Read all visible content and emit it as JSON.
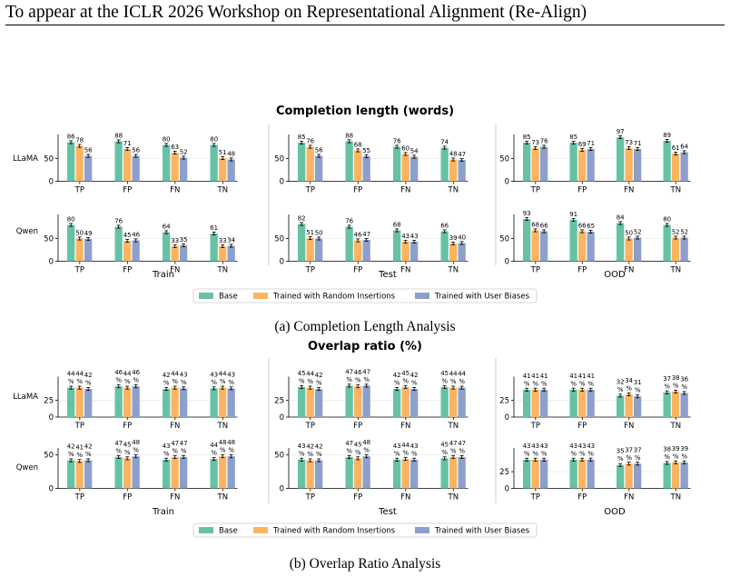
{
  "header": {
    "text": "To appear at the ICLR 2026 Workshop on Representational Alignment (Re-Align)"
  },
  "legend": {
    "items": [
      {
        "label": "Base",
        "color": "#66c2a5"
      },
      {
        "label": "Trained with Random Insertions",
        "color": "#fdb462"
      },
      {
        "label": "Trained with User Biases",
        "color": "#8da0cb"
      }
    ]
  },
  "chart_data": [
    {
      "type": "bar",
      "title": "Completion length (words)",
      "caption": "(a) Completion Length Analysis",
      "columns": [
        "Train",
        "Test",
        "OOD"
      ],
      "rows": [
        "LLaMA",
        "Qwen"
      ],
      "categories": [
        "TP",
        "FP",
        "FN",
        "TN"
      ],
      "series": [
        "Base",
        "Trained with Random Insertions",
        "Trained with User Biases"
      ],
      "panels": [
        {
          "row": "LLaMA",
          "column": "Train",
          "values": [
            [
              86,
              78,
              56
            ],
            [
              88,
              71,
              56
            ],
            [
              80,
              63,
              52
            ],
            [
              80,
              51,
              48
            ]
          ]
        },
        {
          "row": "LLaMA",
          "column": "Test",
          "values": [
            [
              85,
              76,
              56
            ],
            [
              88,
              68,
              55
            ],
            [
              76,
              60,
              54
            ],
            [
              74,
              48,
              47
            ]
          ]
        },
        {
          "row": "LLaMA",
          "column": "OOD",
          "values": [
            [
              85,
              73,
              76
            ],
            [
              85,
              69,
              71
            ],
            [
              97,
              73,
              71
            ],
            [
              89,
              61,
              64
            ]
          ]
        },
        {
          "row": "Qwen",
          "column": "Train",
          "values": [
            [
              80,
              50,
              49
            ],
            [
              76,
              45,
              46
            ],
            [
              64,
              33,
              35
            ],
            [
              61,
              33,
              34
            ]
          ]
        },
        {
          "row": "Qwen",
          "column": "Test",
          "values": [
            [
              82,
              51,
              50
            ],
            [
              76,
              46,
              47
            ],
            [
              68,
              43,
              43
            ],
            [
              66,
              39,
              40
            ]
          ]
        },
        {
          "row": "Qwen",
          "column": "OOD",
          "values": [
            [
              93,
              68,
              66
            ],
            [
              91,
              66,
              65
            ],
            [
              84,
              50,
              52
            ],
            [
              80,
              52,
              52
            ]
          ]
        }
      ],
      "value_suffix": "",
      "ylim": [
        0,
        95
      ],
      "yticks": [
        0,
        50
      ]
    },
    {
      "type": "bar",
      "title": "Overlap ratio (%)",
      "caption": "(b) Overlap Ratio Analysis",
      "columns": [
        "Train",
        "Test",
        "OOD"
      ],
      "rows": [
        "LLaMA",
        "Qwen"
      ],
      "categories": [
        "TP",
        "FP",
        "FN",
        "TN"
      ],
      "series": [
        "Base",
        "Trained with Random Insertions",
        "Trained with User Biases"
      ],
      "panels": [
        {
          "row": "LLaMA",
          "column": "Train",
          "yticks": [
            0,
            25
          ],
          "values": [
            [
              44,
              44,
              42
            ],
            [
              46,
              44,
              46
            ],
            [
              42,
              44,
              43
            ],
            [
              43,
              44,
              43
            ]
          ]
        },
        {
          "row": "LLaMA",
          "column": "Test",
          "yticks": [
            0,
            25
          ],
          "values": [
            [
              45,
              44,
              42
            ],
            [
              47,
              46,
              47
            ],
            [
              42,
              45,
              42
            ],
            [
              45,
              44,
              44
            ]
          ]
        },
        {
          "row": "LLaMA",
          "column": "OOD",
          "yticks": [
            0,
            25
          ],
          "values": [
            [
              41,
              41,
              41
            ],
            [
              41,
              41,
              41
            ],
            [
              32,
              34,
              31
            ],
            [
              37,
              38,
              36
            ]
          ]
        },
        {
          "row": "Qwen",
          "column": "Train",
          "yticks": [
            0,
            50
          ],
          "values": [
            [
              42,
              41,
              42
            ],
            [
              47,
              45,
              48
            ],
            [
              43,
              47,
              47
            ],
            [
              44,
              48,
              48
            ]
          ]
        },
        {
          "row": "Qwen",
          "column": "Test",
          "yticks": [
            0,
            50
          ],
          "values": [
            [
              43,
              42,
              42
            ],
            [
              47,
              45,
              48
            ],
            [
              43,
              44,
              43
            ],
            [
              45,
              47,
              47
            ]
          ]
        },
        {
          "row": "Qwen",
          "column": "OOD",
          "yticks": [
            0,
            25
          ],
          "values": [
            [
              43,
              43,
              43
            ],
            [
              43,
              43,
              43
            ],
            [
              35,
              37,
              37
            ],
            [
              38,
              39,
              39
            ]
          ]
        }
      ],
      "value_suffix": "%",
      "ylim": [
        0,
        55
      ]
    }
  ]
}
